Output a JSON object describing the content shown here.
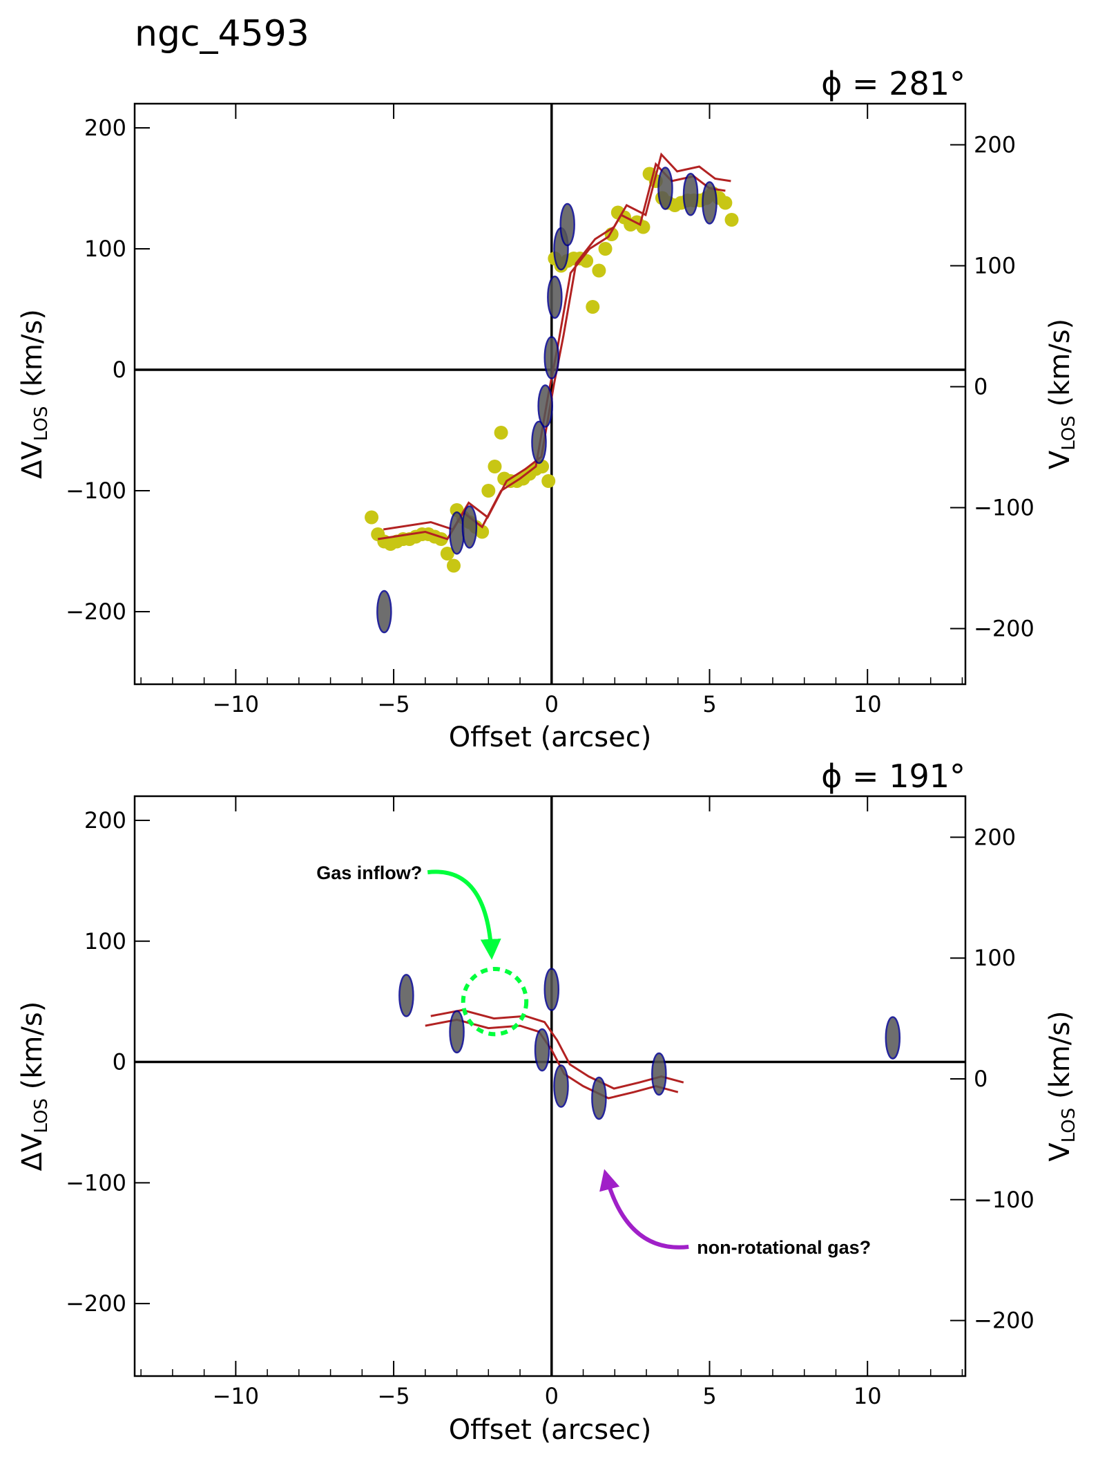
{
  "figure_title": "ngc_4593",
  "chart_data": [
    {
      "type": "scatter",
      "panel_label": "ϕ = 281°",
      "xlabel": "Offset (arcsec)",
      "ylabel_left": "ΔVₗₒₛ (km/s)",
      "ylabel_right": "Vₗₒₛ (km/s)",
      "ylabel_left_main": "ΔV",
      "ylabel_right_main": "V",
      "ylabel_sub": "LOS",
      "ylabel_unit": "(km/s)",
      "xlim": [
        -13.2,
        13.1
      ],
      "ylim": [
        -260,
        220
      ],
      "ylim_right": [
        -246,
        234
      ],
      "xticks": [
        -10,
        -5,
        0,
        5,
        10
      ],
      "xtick_labels": [
        "−10",
        "−5",
        "0",
        "5",
        "10"
      ],
      "yticks": [
        -200,
        -100,
        0,
        100,
        200
      ],
      "ytick_labels": [
        "−200",
        "−100",
        "0",
        "100",
        "200"
      ],
      "yticks_right": [
        -200,
        -100,
        0,
        100,
        200
      ],
      "ytick_labels_right": [
        "−200",
        "−100",
        "0",
        "100",
        "200"
      ],
      "colors": {
        "points": "#c8c614",
        "model_contour": "#b22222",
        "data_contour": "#00008b",
        "axis_lines": "#000000"
      },
      "series": [
        {
          "kind": "points",
          "x": [
            -5.7,
            -5.5,
            -5.3,
            -5.1,
            -4.9,
            -4.7,
            -4.5,
            -4.3,
            -4.1,
            -3.9,
            -3.7,
            -3.5,
            -3.3,
            -3.1,
            -3.0,
            -2.8,
            -2.6,
            -2.4,
            -2.2,
            -2.0,
            -1.8,
            -1.6,
            -1.5,
            -1.3,
            -1.1,
            -0.9,
            -0.7,
            -0.5,
            -0.3,
            -0.1,
            0.1,
            0.3,
            0.5,
            0.7,
            0.9,
            1.1,
            1.3,
            1.5,
            1.7,
            1.9,
            2.1,
            2.3,
            2.5,
            2.7,
            2.9,
            3.1,
            3.3,
            3.5,
            3.7,
            3.9,
            4.1,
            4.3,
            4.5,
            4.7,
            4.9,
            5.1,
            5.3,
            5.5,
            5.7
          ],
          "y": [
            -122,
            -136,
            -142,
            -144,
            -142,
            -140,
            -140,
            -138,
            -136,
            -136,
            -138,
            -140,
            -152,
            -162,
            -116,
            -122,
            -126,
            -130,
            -134,
            -100,
            -80,
            -52,
            -90,
            -92,
            -92,
            -90,
            -86,
            -82,
            -80,
            -92,
            92,
            86,
            90,
            92,
            92,
            90,
            52,
            82,
            100,
            112,
            130,
            126,
            120,
            122,
            118,
            162,
            156,
            142,
            138,
            136,
            138,
            140,
            140,
            140,
            142,
            146,
            142,
            138,
            124
          ]
        },
        {
          "kind": "model-contour",
          "x": [
            -5.5,
            -5.0,
            -4.0,
            -3.3,
            -2.8,
            -2.2,
            -1.6,
            -1.0,
            -0.5,
            -0.1,
            0.2,
            0.6,
            1.2,
            1.8,
            2.2,
            2.8,
            3.3,
            3.8,
            4.5,
            5.0,
            5.5
          ],
          "y": [
            -140,
            -138,
            -134,
            -140,
            -118,
            -130,
            -100,
            -90,
            -80,
            -20,
            20,
            80,
            100,
            110,
            128,
            120,
            170,
            156,
            160,
            150,
            148
          ]
        },
        {
          "kind": "data-contour",
          "x": [
            -5.3,
            -3.0,
            -2.6,
            -0.4,
            -0.2,
            0.0,
            0.1,
            0.3,
            0.5,
            3.6,
            4.4,
            5.0
          ],
          "y": [
            -200,
            -135,
            -130,
            -60,
            -30,
            10,
            60,
            100,
            120,
            150,
            145,
            138
          ]
        }
      ]
    },
    {
      "type": "scatter",
      "panel_label": "ϕ = 191°",
      "xlabel": "Offset (arcsec)",
      "ylabel_left_main": "ΔV",
      "ylabel_right_main": "V",
      "ylabel_sub": "LOS",
      "ylabel_unit": "(km/s)",
      "xlim": [
        -13.2,
        13.1
      ],
      "ylim": [
        -260,
        220
      ],
      "ylim_right": [
        -246,
        234
      ],
      "xticks": [
        -10,
        -5,
        0,
        5,
        10
      ],
      "xtick_labels": [
        "−10",
        "−5",
        "0",
        "5",
        "10"
      ],
      "yticks": [
        -200,
        -100,
        0,
        100,
        200
      ],
      "ytick_labels": [
        "−200",
        "−100",
        "0",
        "100",
        "200"
      ],
      "yticks_right": [
        -200,
        -100,
        0,
        100,
        200
      ],
      "ytick_labels_right": [
        "−200",
        "−100",
        "0",
        "100",
        "200"
      ],
      "annotations": [
        {
          "text": "Gas inflow?",
          "x": -4.1,
          "y": 157,
          "color": "#00ff3c",
          "target_x": -1.9,
          "target_y": 88
        },
        {
          "text": "non-rotational gas?",
          "x": 4.6,
          "y": -153,
          "color": "#a020c8",
          "target_x": 1.7,
          "target_y": -92
        }
      ],
      "highlight_circle": {
        "x": -1.8,
        "y": 50,
        "radius_x": 1.0,
        "radius_y": 27,
        "color": "#00ff3c"
      },
      "series": [
        {
          "kind": "model-contour",
          "x": [
            -4.0,
            -3.0,
            -2.0,
            -1.0,
            -0.4,
            0.0,
            0.4,
            1.0,
            1.8,
            2.6,
            3.3,
            4.0
          ],
          "y": [
            30,
            35,
            28,
            30,
            25,
            10,
            -10,
            -20,
            -30,
            -25,
            -20,
            -25
          ]
        },
        {
          "kind": "data-contour",
          "x": [
            -4.6,
            -3.0,
            -0.3,
            0.0,
            0.3,
            1.5,
            3.4,
            10.8
          ],
          "y": [
            55,
            25,
            10,
            60,
            -20,
            -30,
            -10,
            20
          ]
        }
      ]
    }
  ]
}
